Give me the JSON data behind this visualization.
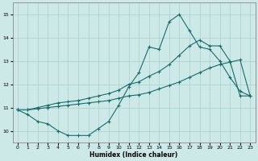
{
  "xlabel": "Humidex (Indice chaleur)",
  "xlim": [
    -0.5,
    23.5
  ],
  "ylim": [
    9.5,
    15.5
  ],
  "yticks": [
    10,
    11,
    12,
    13,
    14,
    15
  ],
  "xticks": [
    0,
    1,
    2,
    3,
    4,
    5,
    6,
    7,
    8,
    9,
    10,
    11,
    12,
    13,
    14,
    15,
    16,
    17,
    18,
    19,
    20,
    21,
    22,
    23
  ],
  "bg_color": "#cce9e8",
  "grid_color": "#aed4d2",
  "line_color": "#1a6b6b",
  "curve1_x": [
    0,
    1,
    2,
    3,
    4,
    5,
    6,
    7,
    8,
    9,
    10,
    11,
    12,
    13,
    14,
    15,
    16,
    17,
    18,
    19,
    20,
    21,
    22,
    23
  ],
  "curve1_y": [
    10.9,
    10.7,
    10.4,
    10.3,
    10.0,
    9.8,
    9.8,
    9.8,
    10.1,
    10.4,
    11.1,
    11.9,
    12.5,
    13.6,
    13.5,
    14.7,
    15.0,
    14.3,
    13.6,
    13.5,
    13.0,
    12.3,
    11.7,
    11.5
  ],
  "curve2_x": [
    0,
    1,
    2,
    3,
    4,
    5,
    6,
    7,
    8,
    9,
    10,
    11,
    12,
    13,
    14,
    15,
    16,
    17,
    18,
    19,
    20,
    21,
    22,
    23
  ],
  "curve2_y": [
    10.9,
    10.9,
    11.0,
    11.1,
    11.2,
    11.25,
    11.3,
    11.4,
    11.5,
    11.6,
    11.75,
    12.0,
    12.1,
    12.35,
    12.55,
    12.85,
    13.25,
    13.65,
    13.9,
    13.65,
    13.65,
    13.0,
    11.5,
    11.5
  ],
  "curve3_x": [
    0,
    1,
    2,
    3,
    4,
    5,
    6,
    7,
    8,
    9,
    10,
    11,
    12,
    13,
    14,
    15,
    16,
    17,
    18,
    19,
    20,
    21,
    22,
    23
  ],
  "curve3_y": [
    10.9,
    10.9,
    10.95,
    11.0,
    11.05,
    11.1,
    11.15,
    11.2,
    11.25,
    11.3,
    11.4,
    11.5,
    11.55,
    11.65,
    11.8,
    11.95,
    12.1,
    12.3,
    12.5,
    12.7,
    12.85,
    12.95,
    13.05,
    11.5
  ]
}
